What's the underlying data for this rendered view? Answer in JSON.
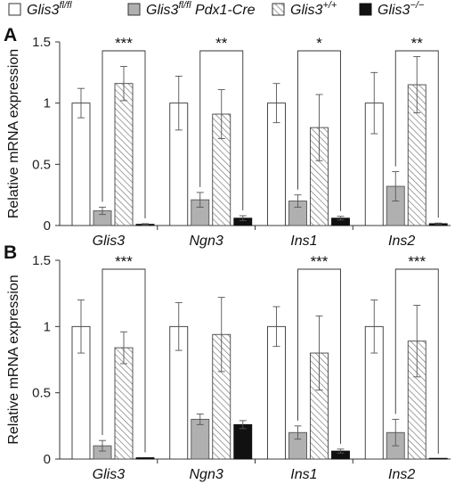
{
  "legend": [
    {
      "base": "Glis3",
      "sup": "fl/fl",
      "mid": "",
      "sup2": "",
      "fill": "white"
    },
    {
      "base": "Glis3",
      "sup": "fl/fl",
      "mid": " Pdx1-Cre",
      "sup2": "",
      "fill": "gray"
    },
    {
      "base": "Glis3",
      "sup": "+/+",
      "mid": "",
      "sup2": "",
      "fill": "hatch"
    },
    {
      "base": "Glis3",
      "sup": "−/−",
      "mid": "",
      "sup2": "",
      "fill": "black"
    }
  ],
  "colors": {
    "gray": "#b0b0b0",
    "black": "#111111",
    "hatch_line": "#7a7a7a",
    "axis": "#333333"
  },
  "chart_data": [
    {
      "type": "bar",
      "panel_label": "A",
      "ylabel": "Relative mRNA expression",
      "ylim": [
        0,
        1.5
      ],
      "yticks": [
        "0",
        "0.5",
        "1",
        "1.5"
      ],
      "categories": [
        "Glis3",
        "Ngn3",
        "Ins1",
        "Ins2"
      ],
      "series": [
        {
          "values": [
            1.0,
            1.0,
            1.0,
            1.0
          ],
          "errors": [
            0.12,
            0.22,
            0.16,
            0.25
          ]
        },
        {
          "values": [
            0.12,
            0.21,
            0.2,
            0.32
          ],
          "errors": [
            0.03,
            0.06,
            0.05,
            0.12
          ]
        },
        {
          "values": [
            1.16,
            0.91,
            0.8,
            1.15
          ],
          "errors": [
            0.14,
            0.2,
            0.27,
            0.23
          ]
        },
        {
          "values": [
            0.01,
            0.06,
            0.06,
            0.015
          ],
          "errors": [
            0.005,
            0.02,
            0.015,
            0.005
          ]
        }
      ],
      "significance": [
        "***",
        "**",
        "*",
        "**"
      ]
    },
    {
      "type": "bar",
      "panel_label": "B",
      "ylabel": "Relative mRNA expression",
      "ylim": [
        0,
        1.5
      ],
      "yticks": [
        "0",
        "0.5",
        "1",
        "1.5"
      ],
      "categories": [
        "Glis3",
        "Ngn3",
        "Ins1",
        "Ins2"
      ],
      "series": [
        {
          "values": [
            1.0,
            1.0,
            1.0,
            1.0
          ],
          "errors": [
            0.2,
            0.18,
            0.15,
            0.2
          ]
        },
        {
          "values": [
            0.1,
            0.3,
            0.2,
            0.2
          ],
          "errors": [
            0.04,
            0.04,
            0.05,
            0.1
          ]
        },
        {
          "values": [
            0.84,
            0.94,
            0.8,
            0.89
          ],
          "errors": [
            0.12,
            0.28,
            0.28,
            0.27
          ]
        },
        {
          "values": [
            0.01,
            0.26,
            0.06,
            0.0
          ],
          "errors": [
            0.0,
            0.03,
            0.015,
            0.0
          ]
        }
      ],
      "significance": [
        "***",
        "",
        "***",
        "***"
      ]
    }
  ]
}
